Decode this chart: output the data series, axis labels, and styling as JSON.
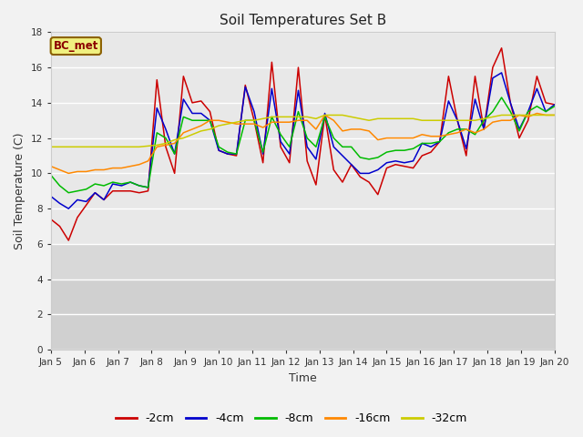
{
  "title": "Soil Temperatures Set B",
  "xlabel": "Time",
  "ylabel": "Soil Temperature (C)",
  "ylim": [
    0,
    18
  ],
  "yticks": [
    0,
    2,
    4,
    6,
    8,
    10,
    12,
    14,
    16,
    18
  ],
  "xtick_labels": [
    "Jan 5",
    "Jan 6",
    "Jan 7",
    "Jan 8",
    "Jan 9",
    "Jan 10",
    "Jan 11",
    "Jan 12",
    "Jan 13",
    "Jan 14",
    "Jan 15",
    "Jan 16",
    "Jan 17",
    "Jan 18",
    "Jan 19",
    "Jan 20"
  ],
  "label_text": "BC_met",
  "colors": {
    "-2cm": "#cc0000",
    "-4cm": "#0000cc",
    "-8cm": "#00bb00",
    "-16cm": "#ff8800",
    "-32cm": "#cccc00"
  },
  "series": {
    "-2cm": [
      7.4,
      7.0,
      6.2,
      7.5,
      8.2,
      8.9,
      8.5,
      9.0,
      9.0,
      9.0,
      8.9,
      9.0,
      15.3,
      11.5,
      10.0,
      15.5,
      14.0,
      14.1,
      13.5,
      11.3,
      11.1,
      11.0,
      15.0,
      13.0,
      10.6,
      16.3,
      11.5,
      10.6,
      16.0,
      10.7,
      9.35,
      13.3,
      10.2,
      9.5,
      10.5,
      9.8,
      9.5,
      8.8,
      10.3,
      10.5,
      10.4,
      10.3,
      11.0,
      11.2,
      11.8,
      15.5,
      13.0,
      11.0,
      15.5,
      12.5,
      16.0,
      17.1,
      14.0,
      12.0,
      13.0,
      15.5,
      14.0,
      13.9
    ],
    "-4cm": [
      8.7,
      8.3,
      8.0,
      8.5,
      8.4,
      8.9,
      8.5,
      9.4,
      9.3,
      9.5,
      9.3,
      9.2,
      13.7,
      12.5,
      11.1,
      14.2,
      13.4,
      13.4,
      13.0,
      11.3,
      11.1,
      11.1,
      14.9,
      13.5,
      11.1,
      14.8,
      11.8,
      11.1,
      14.7,
      11.5,
      10.8,
      13.4,
      11.5,
      11.0,
      10.5,
      10.0,
      10.0,
      10.2,
      10.6,
      10.7,
      10.6,
      10.7,
      11.7,
      11.5,
      11.8,
      14.1,
      13.0,
      11.4,
      14.2,
      12.5,
      15.4,
      15.7,
      14.0,
      12.5,
      13.5,
      14.8,
      13.5,
      13.9
    ],
    "-8cm": [
      9.9,
      9.3,
      8.9,
      9.0,
      9.1,
      9.4,
      9.3,
      9.5,
      9.4,
      9.5,
      9.3,
      9.2,
      12.3,
      12.0,
      11.1,
      13.2,
      13.0,
      13.0,
      13.0,
      11.5,
      11.2,
      11.1,
      13.0,
      13.0,
      11.2,
      13.2,
      12.2,
      11.5,
      13.5,
      12.0,
      11.5,
      13.2,
      12.0,
      11.5,
      11.5,
      10.9,
      10.8,
      10.9,
      11.2,
      11.3,
      11.3,
      11.4,
      11.7,
      11.7,
      11.8,
      12.3,
      12.5,
      12.5,
      12.2,
      13.0,
      13.5,
      14.3,
      13.5,
      12.4,
      13.5,
      13.8,
      13.5,
      13.8
    ],
    "-16cm": [
      10.4,
      10.2,
      10.0,
      10.1,
      10.1,
      10.2,
      10.2,
      10.3,
      10.3,
      10.4,
      10.5,
      10.7,
      11.5,
      11.6,
      11.7,
      12.3,
      12.5,
      12.7,
      13.0,
      13.0,
      12.9,
      12.8,
      12.8,
      12.8,
      12.6,
      12.9,
      12.9,
      12.9,
      13.0,
      13.0,
      12.5,
      13.3,
      13.0,
      12.4,
      12.5,
      12.5,
      12.4,
      11.9,
      12.0,
      12.0,
      12.0,
      12.0,
      12.2,
      12.1,
      12.1,
      12.2,
      12.3,
      12.5,
      12.3,
      12.5,
      12.9,
      13.0,
      13.0,
      13.3,
      13.2,
      13.4,
      13.3,
      13.3
    ],
    "-32cm": [
      11.5,
      11.5,
      11.5,
      11.5,
      11.5,
      11.5,
      11.5,
      11.5,
      11.5,
      11.5,
      11.5,
      11.55,
      11.6,
      11.7,
      11.9,
      12.0,
      12.2,
      12.4,
      12.5,
      12.7,
      12.8,
      12.9,
      13.0,
      13.0,
      13.1,
      13.2,
      13.2,
      13.2,
      13.2,
      13.2,
      13.1,
      13.3,
      13.3,
      13.3,
      13.2,
      13.1,
      13.0,
      13.1,
      13.1,
      13.1,
      13.1,
      13.1,
      13.0,
      13.0,
      13.0,
      13.0,
      13.0,
      13.0,
      13.0,
      13.1,
      13.2,
      13.3,
      13.3,
      13.3,
      13.3,
      13.3,
      13.3,
      13.3
    ]
  },
  "bg_upper_color": "#e8e8e8",
  "bg_lower_color": "#d8d8d8",
  "bg_bottom_color": "#d0d0d0",
  "grid_color": "#ffffff",
  "legend_labels": [
    "-2cm",
    "-4cm",
    "-8cm",
    "-16cm",
    "-32cm"
  ]
}
